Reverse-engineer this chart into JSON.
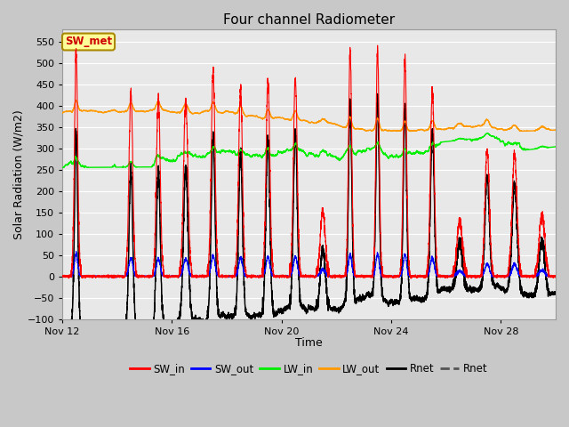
{
  "title": "Four channel Radiometer",
  "xlabel": "Time",
  "ylabel": "Solar Radiation (W/m2)",
  "annotation_text": "SW_met",
  "annotation_color": "#cc0000",
  "annotation_bg": "#ffff99",
  "annotation_border": "#aa8800",
  "ylim": [
    -100,
    580
  ],
  "yticks": [
    -100,
    -50,
    0,
    50,
    100,
    150,
    200,
    250,
    300,
    350,
    400,
    450,
    500,
    550
  ],
  "xtick_labels": [
    "Nov 12",
    "Nov 16",
    "Nov 20",
    "Nov 24",
    "Nov 28"
  ],
  "xtick_positions": [
    0,
    4,
    8,
    12,
    16
  ],
  "fig_bg": "#c8c8c8",
  "plot_bg": "#e8e8e8",
  "grid_color": "#ffffff",
  "line_colors": {
    "SW_in": "#ff0000",
    "SW_out": "#0000ff",
    "LW_in": "#00ee00",
    "LW_out": "#ff9900",
    "Rnet1": "#000000",
    "Rnet2": "#000000"
  },
  "legend_labels": [
    "SW_in",
    "SW_out",
    "LW_in",
    "LW_out",
    "Rnet",
    "Rnet"
  ],
  "legend_colors": [
    "#ff0000",
    "#0000ff",
    "#00ee00",
    "#ff9900",
    "#000000",
    "#555555"
  ],
  "num_days": 18,
  "samples_per_day": 288,
  "sw_in_peaks": [
    520,
    0,
    430,
    420,
    410,
    480,
    440,
    460,
    465,
    155,
    530,
    530,
    515,
    435,
    130,
    300,
    285,
    145
  ],
  "spike_widths": [
    0.06,
    0,
    0.07,
    0.07,
    0.08,
    0.07,
    0.07,
    0.07,
    0.07,
    0.09,
    0.06,
    0.06,
    0.06,
    0.07,
    0.1,
    0.08,
    0.09,
    0.1
  ]
}
